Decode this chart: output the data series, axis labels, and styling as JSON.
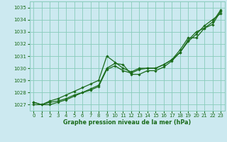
{
  "xlabel": "Graphe pression niveau de la mer (hPa)",
  "background_color": "#cce9f0",
  "grid_color": "#88ccbb",
  "line_color": "#1a6b1a",
  "text_color": "#1a6b1a",
  "ylim": [
    1026.5,
    1035.5
  ],
  "xlim": [
    -0.5,
    23.5
  ],
  "yticks": [
    1027,
    1028,
    1029,
    1030,
    1031,
    1032,
    1033,
    1034,
    1035
  ],
  "xticks": [
    0,
    1,
    2,
    3,
    4,
    5,
    6,
    7,
    8,
    9,
    10,
    11,
    12,
    13,
    14,
    15,
    16,
    17,
    18,
    19,
    20,
    21,
    22,
    23
  ],
  "series1_x": [
    0,
    1,
    2,
    3,
    4,
    5,
    6,
    7,
    8,
    9,
    10,
    11,
    12,
    13,
    14,
    15,
    16,
    17,
    18,
    19,
    20,
    21,
    22,
    23
  ],
  "series1_y": [
    1027.2,
    1027.0,
    1027.3,
    1027.5,
    1027.8,
    1028.1,
    1028.4,
    1028.7,
    1029.0,
    1031.0,
    1030.5,
    1030.0,
    1029.7,
    1030.0,
    1030.0,
    1030.0,
    1030.3,
    1030.7,
    1031.5,
    1032.5,
    1032.5,
    1033.3,
    1033.6,
    1034.7
  ],
  "series2_x": [
    0,
    1,
    2,
    3,
    4,
    5,
    6,
    7,
    8,
    9,
    10,
    11,
    12,
    13,
    14,
    15,
    16,
    17,
    18,
    19,
    20,
    21,
    22,
    23
  ],
  "series2_y": [
    1027.2,
    1027.0,
    1027.2,
    1027.3,
    1027.5,
    1027.8,
    1028.0,
    1028.2,
    1028.5,
    1029.9,
    1030.2,
    1029.8,
    1029.6,
    1029.9,
    1030.0,
    1030.0,
    1030.3,
    1030.7,
    1031.3,
    1032.2,
    1032.8,
    1033.5,
    1034.0,
    1034.5
  ],
  "series3_x": [
    0,
    2,
    3,
    4,
    5,
    6,
    7,
    8,
    9,
    10,
    11,
    12,
    13,
    14,
    15,
    16,
    17,
    18,
    19,
    20,
    21,
    22,
    23
  ],
  "series3_y": [
    1027.0,
    1027.0,
    1027.2,
    1027.4,
    1027.7,
    1028.0,
    1028.3,
    1028.6,
    1030.0,
    1030.4,
    1030.3,
    1029.5,
    1029.5,
    1029.8,
    1029.8,
    1030.1,
    1030.6,
    1031.3,
    1032.3,
    1033.0,
    1033.3,
    1033.8,
    1034.8
  ]
}
